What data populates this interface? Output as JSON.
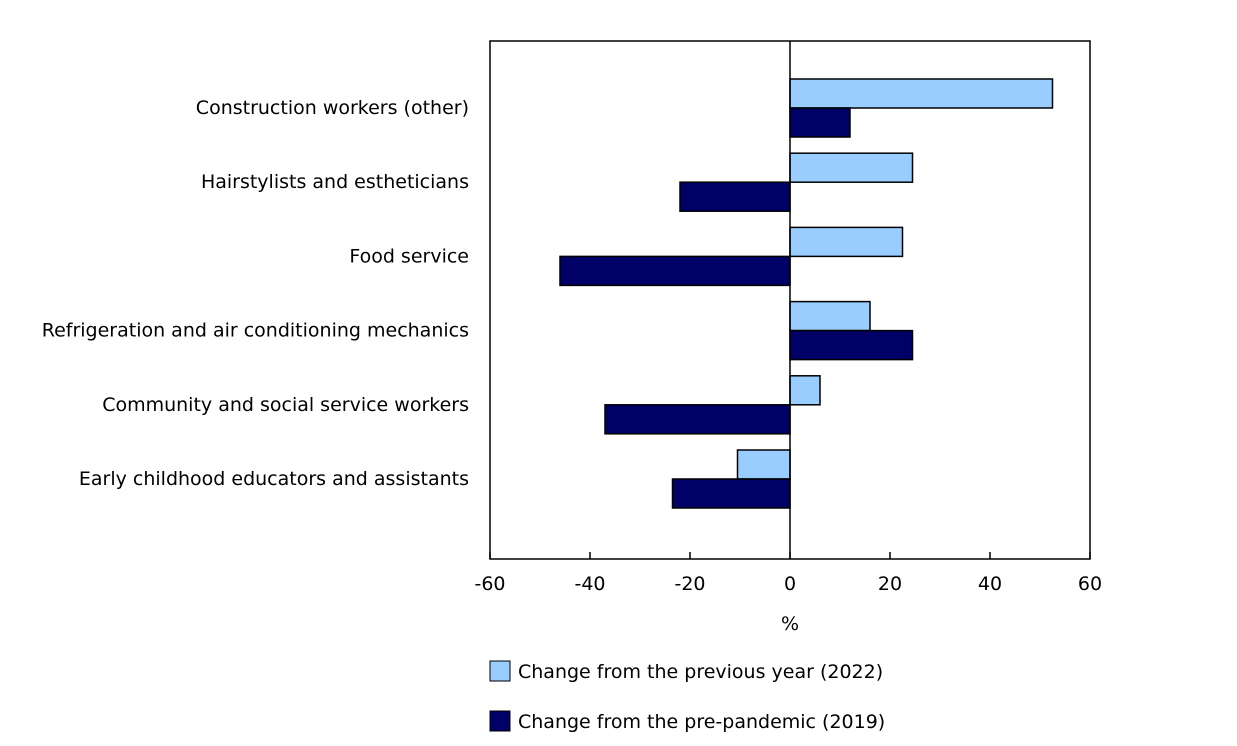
{
  "chart_data": {
    "type": "bar",
    "orientation": "horizontal",
    "title": "",
    "xlabel": "%",
    "ylabel": "",
    "xlim": [
      -60,
      60
    ],
    "xticks": [
      -60,
      -40,
      -20,
      0,
      20,
      40,
      60
    ],
    "tick_labels": [
      "-60",
      "-40",
      "-20",
      "0",
      "20",
      "40",
      "60"
    ],
    "categories": [
      "Construction workers (other)",
      "Hairstylists and estheticians",
      "Food service",
      "Refrigeration and air conditioning mechanics",
      "Community and social service workers",
      "Early childhood educators and assistants"
    ],
    "series": [
      {
        "name": "Change from the previous year (2022)",
        "color": "#99ccff",
        "values": [
          52.5,
          24.5,
          22.5,
          16,
          6,
          -10.5
        ]
      },
      {
        "name": "Change from the pre-pandemic (2019)",
        "color": "#000066",
        "values": [
          12,
          -22,
          -46,
          24.5,
          -37,
          -23.5
        ]
      }
    ],
    "legend_position": "bottom",
    "grid": false
  }
}
